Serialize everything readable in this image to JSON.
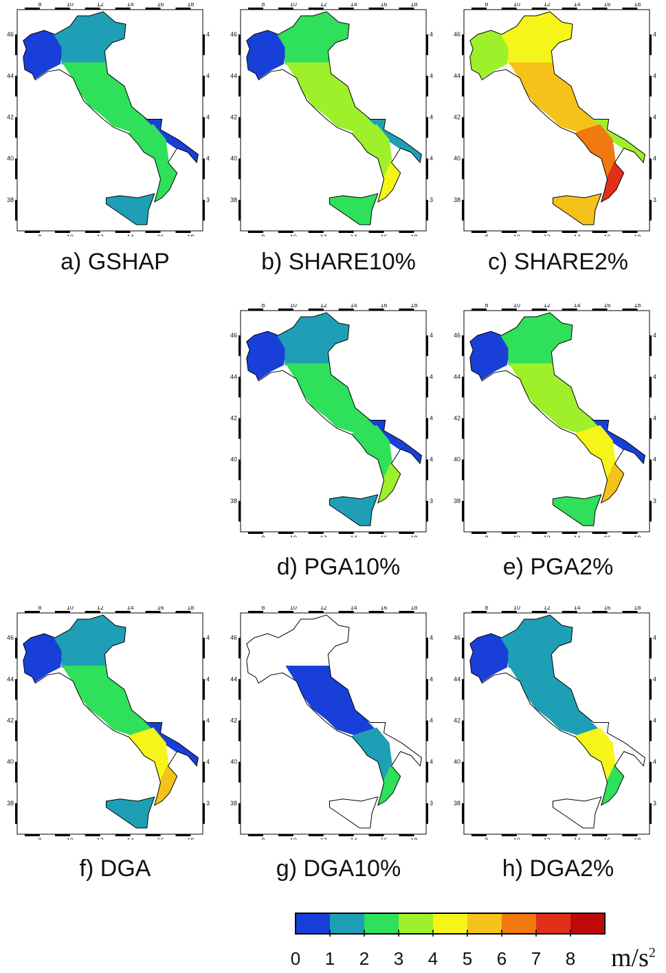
{
  "panels": [
    {
      "id": "a",
      "caption": "a)  GSHAP",
      "lon_ticks": [
        "8",
        "10",
        "12",
        "14",
        "16",
        "18"
      ],
      "lat_ticks": [
        "38",
        "40",
        "42",
        "44",
        "46"
      ],
      "regions": {
        "north": "#1f9fb5",
        "northwest": "#1840d8",
        "apennines": "#2fe05a",
        "south": "#2fe05a",
        "south_tip": "#2fe05a",
        "sicily": "#1f9fb5",
        "apulia": "#1840d8"
      }
    },
    {
      "id": "b",
      "caption": "b)  SHARE10%",
      "lon_ticks": [
        "8",
        "10",
        "12",
        "14",
        "16",
        "18"
      ],
      "lat_ticks": [
        "38",
        "40",
        "42",
        "44",
        "46"
      ],
      "regions": {
        "north": "#2fe05a",
        "northwest": "#1840d8",
        "apennines": "#9ef02a",
        "south": "#9ef02a",
        "south_tip": "#f5f51a",
        "sicily": "#2fe05a",
        "apulia": "#1f9fb5"
      }
    },
    {
      "id": "c",
      "caption": "c)  SHARE2%",
      "lon_ticks": [
        "8",
        "10",
        "12",
        "14",
        "16",
        "18"
      ],
      "lat_ticks": [
        "38",
        "40",
        "42",
        "44",
        "46"
      ],
      "regions": {
        "north": "#f5f51a",
        "northwest": "#9ef02a",
        "apennines": "#f5c21a",
        "south": "#f07a10",
        "south_tip": "#e0301a",
        "sicily": "#f5c21a",
        "apulia": "#9ef02a"
      }
    },
    {
      "id": "d",
      "caption": "d)  PGA10%",
      "lon_ticks": [
        "8",
        "10",
        "12",
        "14",
        "16",
        "18"
      ],
      "lat_ticks": [
        "38",
        "40",
        "42",
        "44",
        "46"
      ],
      "regions": {
        "north": "#1f9fb5",
        "northwest": "#1840d8",
        "apennines": "#2fe05a",
        "south": "#2fe05a",
        "south_tip": "#9ef02a",
        "sicily": "#1f9fb5",
        "apulia": "#1840d8"
      }
    },
    {
      "id": "e",
      "caption": "e)  PGA2%",
      "lon_ticks": [
        "8",
        "10",
        "12",
        "14",
        "16",
        "18"
      ],
      "lat_ticks": [
        "38",
        "40",
        "42",
        "44",
        "46"
      ],
      "regions": {
        "north": "#2fe05a",
        "northwest": "#1840d8",
        "apennines": "#9ef02a",
        "south": "#f5f51a",
        "south_tip": "#f5c21a",
        "sicily": "#2fe05a",
        "apulia": "#1840d8"
      }
    },
    {
      "id": "f",
      "caption": "f)  DGA",
      "lon_ticks": [
        "8",
        "10",
        "12",
        "14",
        "16",
        "18"
      ],
      "lat_ticks": [
        "38",
        "40",
        "42",
        "44",
        "46"
      ],
      "regions": {
        "north": "#1f9fb5",
        "northwest": "#1840d8",
        "apennines": "#2fe05a",
        "south": "#f5f51a",
        "south_tip": "#f5c21a",
        "sicily": "#1f9fb5",
        "apulia": "#1840d8"
      }
    },
    {
      "id": "g",
      "caption": "g)  DGA10%",
      "lon_ticks": [
        "8",
        "10",
        "12",
        "14",
        "16",
        "18"
      ],
      "lat_ticks": [
        "38",
        "40",
        "42",
        "44",
        "46"
      ],
      "regions": {
        "north": "#ffffff",
        "northwest": "#ffffff",
        "apennines": "#1840d8",
        "south": "#1f9fb5",
        "south_tip": "#2fe05a",
        "sicily": "#ffffff",
        "apulia": "#ffffff"
      }
    },
    {
      "id": "h",
      "caption": "h) DGA2%",
      "lon_ticks": [
        "8",
        "10",
        "12",
        "14",
        "16",
        "18"
      ],
      "lat_ticks": [
        "38",
        "40",
        "42",
        "44",
        "46"
      ],
      "regions": {
        "north": "#1f9fb5",
        "northwest": "#1840d8",
        "apennines": "#1f9fb5",
        "south": "#f5f51a",
        "south_tip": "#2fe05a",
        "sicily": "#ffffff",
        "apulia": "#ffffff"
      }
    }
  ],
  "colorbar": {
    "colors": [
      "#1840d8",
      "#1f9fb5",
      "#2fe05a",
      "#9ef02a",
      "#f5f51a",
      "#f5c21a",
      "#f07a10",
      "#e0301a",
      "#c00a0a"
    ],
    "labels": [
      "0",
      "1",
      "2",
      "3",
      "4",
      "5",
      "6",
      "7",
      "8"
    ],
    "units": "m/s",
    "units_exponent": "2"
  }
}
